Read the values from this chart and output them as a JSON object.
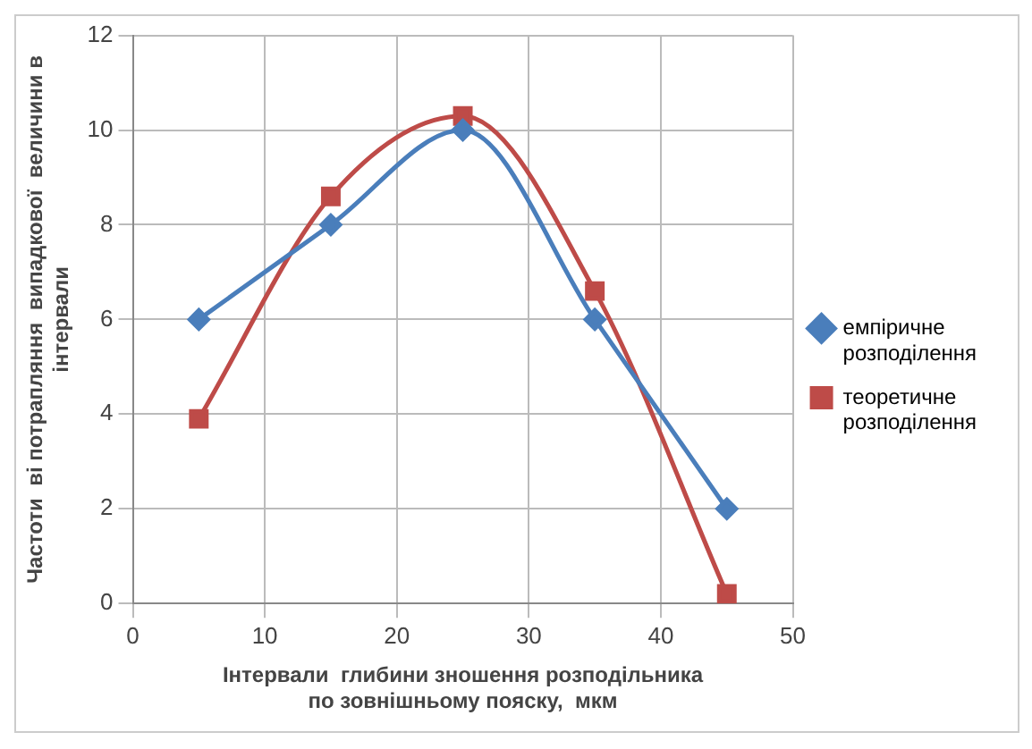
{
  "chart_data": {
    "type": "line",
    "xlabel": "Інтервали  глибини зношення розподільника по зовнішньому пояску,  мкм",
    "ylabel": "Частоти  ві потрапляння  випадкової  величини в інтервали",
    "x": [
      5,
      15,
      25,
      35,
      45
    ],
    "xlim": [
      0,
      50
    ],
    "xticks": [
      0,
      10,
      20,
      30,
      40,
      50
    ],
    "ylim": [
      0,
      12
    ],
    "yticks": [
      0,
      2,
      4,
      6,
      8,
      10,
      12
    ],
    "grid": true,
    "legend": "right",
    "series": [
      {
        "name": "емпіричне розподілення",
        "color": "#4a7ebb",
        "values": [
          6,
          8,
          10,
          6,
          2
        ],
        "marker": "diamond"
      },
      {
        "name": "теоретичне розподілення",
        "color": "#be4b48",
        "values": [
          3.9,
          8.6,
          10.3,
          6.6,
          0.2
        ],
        "marker": "square"
      }
    ]
  }
}
